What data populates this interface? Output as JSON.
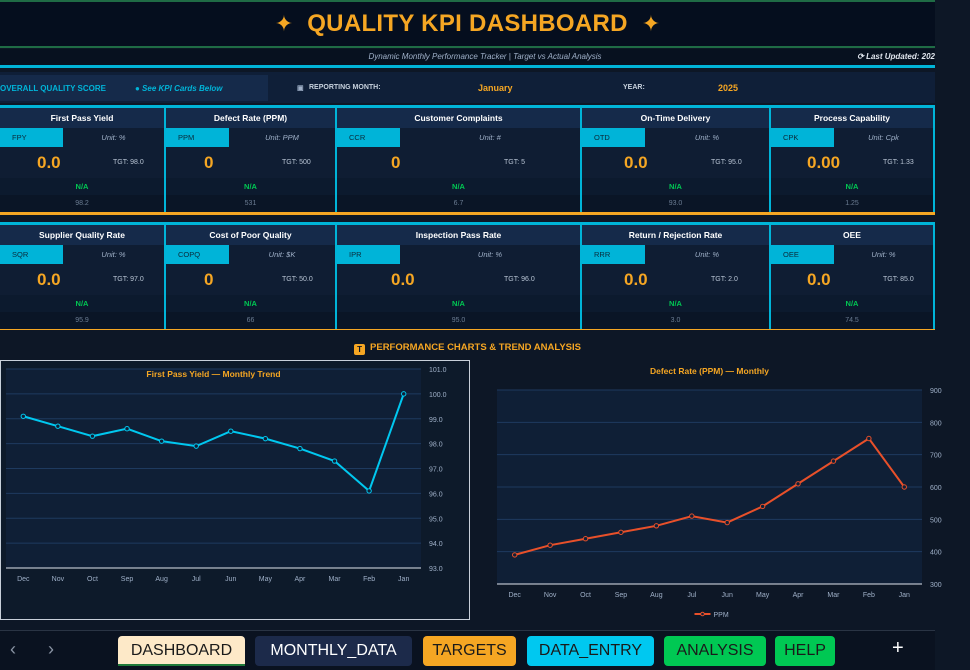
{
  "header": {
    "title": "QUALITY KPI DASHBOARD",
    "star_icon": "✦",
    "subtitle": "Dynamic Monthly Performance Tracker  |  Target vs Actual Analysis",
    "last_updated": "⟳ Last Updated: 202"
  },
  "score_row": {
    "overall_label": "OVERALL QUALITY SCORE",
    "see_cards": "● See KPI Cards Below",
    "reporting_label": "REPORTING MONTH:",
    "reporting_month": "January",
    "year_label": "YEAR:",
    "year": "2025"
  },
  "kpis": [
    {
      "title": "First Pass Yield",
      "code": "FPY",
      "unit": "Unit: %",
      "value": "0.0",
      "target": "TGT: 98.0",
      "status": "N/A",
      "previous": "98.2"
    },
    {
      "title": "Defect Rate (PPM)",
      "code": "PPM",
      "unit": "Unit: PPM",
      "value": "0",
      "target": "TGT: 500",
      "status": "N/A",
      "previous": "531"
    },
    {
      "title": "Customer Complaints",
      "code": "CCR",
      "unit": "Unit: #",
      "value": "0",
      "target": "TGT: 5",
      "status": "N/A",
      "previous": "6.7"
    },
    {
      "title": "On-Time Delivery",
      "code": "OTD",
      "unit": "Unit: %",
      "value": "0.0",
      "target": "TGT: 95.0",
      "status": "N/A",
      "previous": "93.0"
    },
    {
      "title": "Process Capability",
      "code": "CPK",
      "unit": "Unit: Cpk",
      "value": "0.00",
      "target": "TGT: 1.33",
      "status": "N/A",
      "previous": "1.25"
    },
    {
      "title": "Supplier Quality Rate",
      "code": "SQR",
      "unit": "Unit: %",
      "value": "0.0",
      "target": "TGT: 97.0",
      "status": "N/A",
      "previous": "95.9"
    },
    {
      "title": "Cost of Poor Quality",
      "code": "COPQ",
      "unit": "Unit: $K",
      "value": "0",
      "target": "TGT: 50.0",
      "status": "N/A",
      "previous": "66"
    },
    {
      "title": "Inspection Pass Rate",
      "code": "IPR",
      "unit": "Unit: %",
      "value": "0.0",
      "target": "TGT: 96.0",
      "status": "N/A",
      "previous": "95.0"
    },
    {
      "title": "Return / Rejection Rate",
      "code": "RRR",
      "unit": "Unit: %",
      "value": "0.0",
      "target": "TGT: 2.0",
      "status": "N/A",
      "previous": "3.0"
    },
    {
      "title": "OEE",
      "code": "OEE",
      "unit": "Unit: %",
      "value": "0.0",
      "target": "TGT: 85.0",
      "status": "N/A",
      "previous": "74.5"
    }
  ],
  "section_title": "PERFORMANCE CHARTS & TREND ANALYSIS",
  "section_icon": "T",
  "chart_data": [
    {
      "type": "line",
      "title": "First Pass Yield — Monthly Trend",
      "categories": [
        "Dec",
        "Nov",
        "Oct",
        "Sep",
        "Aug",
        "Jul",
        "Jun",
        "May",
        "Apr",
        "Mar",
        "Feb",
        "Jan"
      ],
      "values": [
        99.1,
        98.7,
        98.3,
        98.6,
        98.1,
        97.9,
        98.5,
        98.2,
        97.8,
        97.3,
        96.1,
        100.0
      ],
      "ylim": [
        93,
        101
      ],
      "yticks": [
        "93.0",
        "94.0",
        "95.0",
        "96.0",
        "97.0",
        "98.0",
        "99.0",
        "100.0",
        "101.0"
      ],
      "y_axis_side": "right",
      "grid": true,
      "color": "#00c8f0"
    },
    {
      "type": "line",
      "title": "Defect Rate (PPM) — Monthly",
      "categories": [
        "Dec",
        "Nov",
        "Oct",
        "Sep",
        "Aug",
        "Jul",
        "Jun",
        "May",
        "Apr",
        "Mar",
        "Feb",
        "Jan"
      ],
      "series": [
        {
          "name": "PPM",
          "values": [
            390,
            420,
            440,
            460,
            480,
            510,
            490,
            540,
            610,
            680,
            750,
            600
          ]
        }
      ],
      "ylim": [
        300,
        900
      ],
      "yticks": [
        "300",
        "400",
        "500",
        "600",
        "700",
        "800",
        "900"
      ],
      "y_axis_side": "right",
      "grid": true,
      "legend": "bottom",
      "color": "#e8502a"
    }
  ],
  "tabs": [
    {
      "label": "DASHBOARD",
      "bg": "#fde9c8",
      "fg": "#1a1a1a"
    },
    {
      "label": "MONTHLY_DATA",
      "bg": "#1c2a4a",
      "fg": "#ffffff"
    },
    {
      "label": "TARGETS",
      "bg": "#f5a623",
      "fg": "#1a1a1a"
    },
    {
      "label": "DATA_ENTRY",
      "bg": "#00c8f0",
      "fg": "#1a1a1a"
    },
    {
      "label": "ANALYSIS",
      "bg": "#00c853",
      "fg": "#1a1a1a"
    },
    {
      "label": "HELP",
      "bg": "#00c853",
      "fg": "#1a1a1a"
    }
  ],
  "tabbar": {
    "prev": "‹",
    "next": "›",
    "add": "+"
  }
}
